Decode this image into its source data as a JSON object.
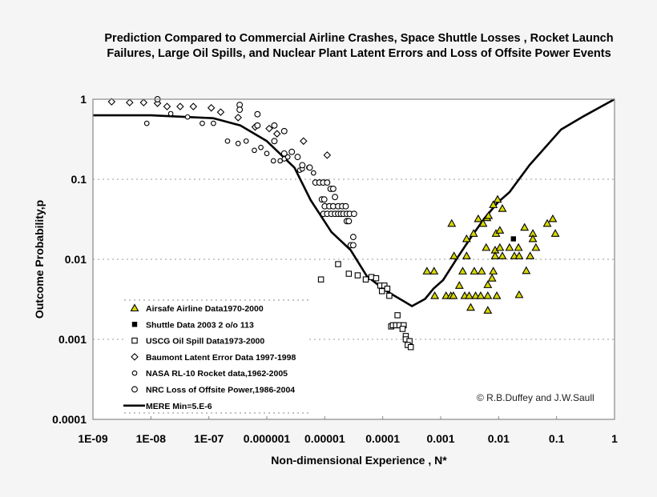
{
  "chart_data": {
    "type": "scatter",
    "title": [
      "Prediction Compared to Commercial Airline Crashes, Space Shuttle Losses , Rocket Launch",
      "Failures, Large Oil Spills, and Nuclear  Plant Latent Errors and Loss of Offsite Power Events"
    ],
    "xlabel": "Non-dimensional Experience , N*",
    "ylabel": "Outcome Probability,p",
    "xscale": "log",
    "yscale": "log",
    "xlim": [
      1e-09,
      1
    ],
    "ylim": [
      0.0001,
      1
    ],
    "xticks": [
      1e-09,
      1e-08,
      1e-07,
      1e-06,
      1e-05,
      0.0001,
      0.001,
      0.01,
      0.1,
      1
    ],
    "xtick_labels": [
      "1E-09",
      "1E-08",
      "1E-07",
      "0.000001",
      "0.00001",
      "0.0001",
      "0.001",
      "0.01",
      "0.1",
      "1"
    ],
    "yticks": [
      1,
      0.1,
      0.01,
      0.001,
      0.0001
    ],
    "ytick_labels": [
      "1",
      "0.1",
      "0.01",
      "0.001",
      "0.0001"
    ],
    "grid": "horizontal dotted",
    "legend_placement": "bottom-left",
    "annotation": "© R.B.Duffey and J.W.Saull",
    "colors": {
      "triangle_fill": "#d8d800",
      "marker_stroke": "#000000",
      "curve": "#000000"
    },
    "series": [
      {
        "name": "Airsafe Airline Data1970-2000",
        "marker": "triangle",
        "points": [
          [
            0.00155,
            0.028
          ],
          [
            0.00445,
            0.032
          ],
          [
            0.0054,
            0.028
          ],
          [
            0.0063,
            0.033
          ],
          [
            0.0067,
            0.035
          ],
          [
            0.0081,
            0.048
          ],
          [
            0.0096,
            0.056
          ],
          [
            0.0116,
            0.043
          ],
          [
            0.0037,
            0.021
          ],
          [
            0.0028,
            0.018
          ],
          [
            0.009,
            0.021
          ],
          [
            0.0105,
            0.023
          ],
          [
            0.028,
            0.025
          ],
          [
            0.039,
            0.021
          ],
          [
            0.039,
            0.018
          ],
          [
            0.069,
            0.028
          ],
          [
            0.086,
            0.032
          ],
          [
            0.095,
            0.021
          ],
          [
            0.0061,
            0.014
          ],
          [
            0.0087,
            0.013
          ],
          [
            0.0105,
            0.014
          ],
          [
            0.0154,
            0.014
          ],
          [
            0.022,
            0.014
          ],
          [
            0.044,
            0.014
          ],
          [
            0.0017,
            0.011
          ],
          [
            0.0028,
            0.011
          ],
          [
            0.0087,
            0.011
          ],
          [
            0.0116,
            0.011
          ],
          [
            0.0187,
            0.011
          ],
          [
            0.0226,
            0.011
          ],
          [
            0.035,
            0.011
          ],
          [
            0.00058,
            0.0071
          ],
          [
            0.00077,
            0.0071
          ],
          [
            0.0024,
            0.0071
          ],
          [
            0.0038,
            0.0071
          ],
          [
            0.0051,
            0.0071
          ],
          [
            0.0081,
            0.0071
          ],
          [
            0.03,
            0.0072
          ],
          [
            0.0077,
            0.0058
          ],
          [
            0.0021,
            0.0047
          ],
          [
            0.0065,
            0.0048
          ],
          [
            0.00079,
            0.0035
          ],
          [
            0.00124,
            0.0035
          ],
          [
            0.0015,
            0.0035
          ],
          [
            0.00166,
            0.0035
          ],
          [
            0.0026,
            0.0035
          ],
          [
            0.0031,
            0.0035
          ],
          [
            0.004,
            0.0035
          ],
          [
            0.0049,
            0.0035
          ],
          [
            0.0065,
            0.0035
          ],
          [
            0.0093,
            0.0035
          ],
          [
            0.0226,
            0.0036
          ],
          [
            0.0033,
            0.0025
          ],
          [
            0.0065,
            0.0023
          ]
        ]
      },
      {
        "name": "Shuttle Data 2003 2 o/o 113",
        "marker": "filled-square",
        "points": [
          [
            0.018,
            0.018
          ]
        ]
      },
      {
        "name": "USCG Oil Spill Data1973-2000",
        "marker": "open-square",
        "points": [
          [
            8.6e-06,
            0.0056
          ],
          [
            1.7e-05,
            0.0087
          ],
          [
            2.6e-05,
            0.0066
          ],
          [
            3.7e-05,
            0.0063
          ],
          [
            5.1e-05,
            0.0056
          ],
          [
            6.4e-05,
            0.006
          ],
          [
            7.7e-05,
            0.0058
          ],
          [
            9.1e-05,
            0.0047
          ],
          [
            0.000107,
            0.0047
          ],
          [
            0.00012,
            0.0043
          ],
          [
            9.7e-05,
            0.004
          ],
          [
            0.00013,
            0.0035
          ],
          [
            0.00018,
            0.002
          ],
          [
            0.00014,
            0.00145
          ],
          [
            0.00015,
            0.0015
          ],
          [
            0.00017,
            0.0015
          ],
          [
            0.000195,
            0.0015
          ],
          [
            0.00023,
            0.0015
          ],
          [
            0.00022,
            0.00135
          ],
          [
            0.00025,
            0.0011
          ],
          [
            0.00025,
            0.001
          ],
          [
            0.00029,
            0.00095
          ],
          [
            0.00027,
            0.00085
          ],
          [
            0.000305,
            0.0008
          ]
        ]
      },
      {
        "name": "Baumont Latent Error Data 1997-1998",
        "marker": "diamond",
        "points": [
          [
            2.1e-09,
            0.93
          ],
          [
            4.3e-09,
            0.91
          ],
          [
            7.5e-09,
            0.91
          ],
          [
            1.3e-08,
            0.89
          ],
          [
            1.9e-08,
            0.81
          ],
          [
            3.2e-08,
            0.81
          ],
          [
            5.4e-08,
            0.81
          ],
          [
            1.1e-07,
            0.78
          ],
          [
            1.6e-07,
            0.69
          ],
          [
            3.2e-07,
            0.59
          ],
          [
            6.3e-07,
            0.45
          ],
          [
            1.1e-06,
            0.43
          ],
          [
            1.5e-06,
            0.37
          ],
          [
            4.3e-06,
            0.3
          ],
          [
            1.1e-05,
            0.2
          ]
        ]
      },
      {
        "name": "NASA RL-10 Rocket data,1962-2005",
        "marker": "small-circle",
        "points": [
          [
            8.5e-09,
            0.5
          ],
          [
            2.2e-08,
            0.66
          ],
          [
            4.3e-08,
            0.6
          ],
          [
            7.7e-08,
            0.5
          ],
          [
            1.2e-07,
            0.5
          ],
          [
            2.1e-07,
            0.3
          ],
          [
            3.2e-07,
            0.28
          ],
          [
            4.4e-07,
            0.3
          ],
          [
            6.1e-07,
            0.23
          ],
          [
            7.9e-07,
            0.25
          ],
          [
            1e-06,
            0.21
          ],
          [
            1.3e-06,
            0.17
          ],
          [
            1.7e-06,
            0.17
          ],
          [
            2e-06,
            0.18
          ],
          [
            2.3e-06,
            0.19
          ],
          [
            3.7e-06,
            0.13
          ],
          [
            4.1e-06,
            0.135
          ],
          [
            5.3e-06,
            0.14
          ],
          [
            6.4e-06,
            0.12
          ]
        ]
      },
      {
        "name": "NRC Loss of Offsite Power,1986-2004",
        "marker": "circle",
        "points": [
          [
            1.3e-08,
            1.0
          ],
          [
            3.4e-07,
            0.85
          ],
          [
            3.4e-07,
            0.74
          ],
          [
            6.9e-07,
            0.65
          ],
          [
            6.9e-07,
            0.47
          ],
          [
            1.35e-06,
            0.47
          ],
          [
            2e-06,
            0.4
          ],
          [
            1.35e-06,
            0.3
          ],
          [
            2e-06,
            0.21
          ],
          [
            2.7e-06,
            0.22
          ],
          [
            3.4e-06,
            0.19
          ],
          [
            4.1e-06,
            0.15
          ],
          [
            5.5e-06,
            0.14
          ],
          [
            6.9e-06,
            0.091
          ],
          [
            8.1e-06,
            0.091
          ],
          [
            9.4e-06,
            0.091
          ],
          [
            1.1e-05,
            0.091
          ],
          [
            1.26e-05,
            0.076
          ],
          [
            1.4e-05,
            0.076
          ],
          [
            1.5e-05,
            0.06
          ],
          [
            8.9e-06,
            0.056
          ],
          [
            9.8e-06,
            0.056
          ],
          [
            1e-05,
            0.046
          ],
          [
            1.2e-05,
            0.046
          ],
          [
            1.4e-05,
            0.046
          ],
          [
            1.7e-05,
            0.046
          ],
          [
            2e-05,
            0.046
          ],
          [
            2.3e-05,
            0.046
          ],
          [
            9.5e-06,
            0.037
          ],
          [
            1.1e-05,
            0.037
          ],
          [
            1.3e-05,
            0.037
          ],
          [
            1.5e-05,
            0.037
          ],
          [
            1.7e-05,
            0.037
          ],
          [
            1.9e-05,
            0.037
          ],
          [
            2.1e-05,
            0.037
          ],
          [
            2.4e-05,
            0.037
          ],
          [
            2.7e-05,
            0.037
          ],
          [
            3.2e-05,
            0.037
          ],
          [
            2.4e-05,
            0.03
          ],
          [
            2.6e-05,
            0.03
          ],
          [
            3.1e-05,
            0.019
          ],
          [
            2.8e-05,
            0.015
          ],
          [
            3.1e-05,
            0.015
          ]
        ]
      },
      {
        "name": "MERE Min=5.E-6",
        "marker": "line",
        "points": [
          [
            1e-09,
            0.63
          ],
          [
            1e-08,
            0.63
          ],
          [
            1.2e-07,
            0.58
          ],
          [
            3.5e-07,
            0.47
          ],
          [
            1e-06,
            0.3
          ],
          [
            3e-06,
            0.14
          ],
          [
            5.7e-06,
            0.055
          ],
          [
            1.3e-05,
            0.022
          ],
          [
            2.8e-05,
            0.013
          ],
          [
            5.3e-05,
            0.0062
          ],
          [
            0.00011,
            0.0041
          ],
          [
            0.00032,
            0.0026
          ],
          [
            0.00054,
            0.0032
          ],
          [
            0.00075,
            0.0043
          ],
          [
            0.0011,
            0.0055
          ],
          [
            0.0019,
            0.0102
          ],
          [
            0.0033,
            0.0186
          ],
          [
            0.0056,
            0.032
          ],
          [
            0.0096,
            0.051
          ],
          [
            0.0154,
            0.069
          ],
          [
            0.034,
            0.15
          ],
          [
            0.12,
            0.42
          ],
          [
            0.3,
            0.62
          ],
          [
            1,
            1
          ]
        ]
      }
    ]
  }
}
